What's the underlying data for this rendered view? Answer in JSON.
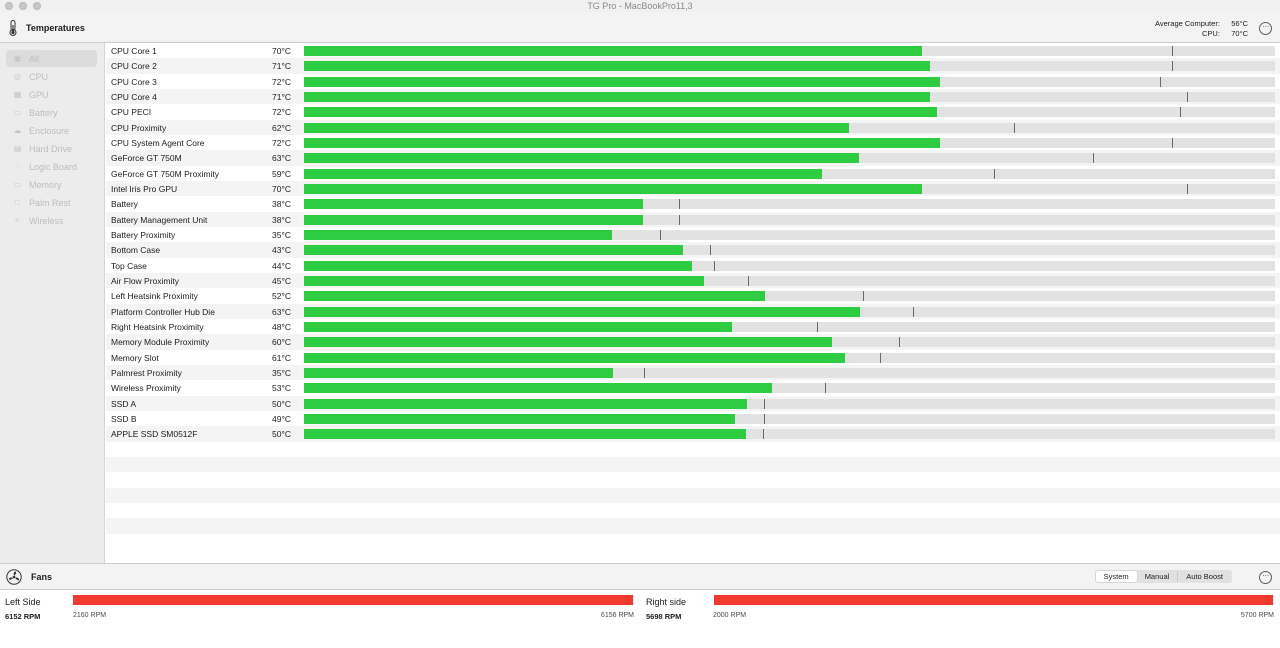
{
  "window": {
    "title": "TG Pro - MacBookPro11,3"
  },
  "temperatures": {
    "title": "Temperatures",
    "average_label": "Average Computer:",
    "average_value": "56°C",
    "cpu_label": "CPU:",
    "cpu_value": "70°C",
    "more": "⋯"
  },
  "sidebar": {
    "items": [
      {
        "label": "All",
        "icon": "all-icon",
        "glyph": "▣"
      },
      {
        "label": "CPU",
        "icon": "cpu-icon",
        "glyph": "◎"
      },
      {
        "label": "GPU",
        "icon": "gpu-icon",
        "glyph": "▦"
      },
      {
        "label": "Battery",
        "icon": "battery-icon",
        "glyph": "▭"
      },
      {
        "label": "Enclosure",
        "icon": "enclosure-icon",
        "glyph": "☁"
      },
      {
        "label": "Hard Drive",
        "icon": "hard-drive-icon",
        "glyph": "▤"
      },
      {
        "label": "Logic Board",
        "icon": "logic-board-icon",
        "glyph": "◌"
      },
      {
        "label": "Memory",
        "icon": "memory-icon",
        "glyph": "▭"
      },
      {
        "label": "Palm Rest",
        "icon": "palm-rest-icon",
        "glyph": "□"
      },
      {
        "label": "Wireless",
        "icon": "wireless-icon",
        "glyph": "≈"
      }
    ]
  },
  "sensors": [
    {
      "name": "CPU Core 1",
      "value": "70°C",
      "level": 0.636,
      "max": 0.894
    },
    {
      "name": "CPU Core 2",
      "value": "71°C",
      "level": 0.645,
      "max": 0.894
    },
    {
      "name": "CPU Core 3",
      "value": "72°C",
      "level": 0.655,
      "max": 0.882
    },
    {
      "name": "CPU Core 4",
      "value": "71°C",
      "level": 0.645,
      "max": 0.909
    },
    {
      "name": "CPU PECI",
      "value": "72°C",
      "level": 0.652,
      "max": 0.902
    },
    {
      "name": "CPU Proximity",
      "value": "62°C",
      "level": 0.561,
      "max": 0.731
    },
    {
      "name": "CPU System Agent Core",
      "value": "72°C",
      "level": 0.655,
      "max": 0.894
    },
    {
      "name": "GeForce GT 750M",
      "value": "63°C",
      "level": 0.572,
      "max": 0.813
    },
    {
      "name": "GeForce GT 750M Proximity",
      "value": "59°C",
      "level": 0.533,
      "max": 0.711
    },
    {
      "name": "Intel Iris Pro GPU",
      "value": "70°C",
      "level": 0.636,
      "max": 0.909
    },
    {
      "name": "Battery",
      "value": "38°C",
      "level": 0.349,
      "max": 0.386
    },
    {
      "name": "Battery Management Unit",
      "value": "38°C",
      "level": 0.349,
      "max": 0.386
    },
    {
      "name": "Battery Proximity",
      "value": "35°C",
      "level": 0.317,
      "max": 0.367
    },
    {
      "name": "Bottom Case",
      "value": "43°C",
      "level": 0.39,
      "max": 0.418
    },
    {
      "name": "Top Case",
      "value": "44°C",
      "level": 0.4,
      "max": 0.422
    },
    {
      "name": "Air Flow Proximity",
      "value": "45°C",
      "level": 0.412,
      "max": 0.457
    },
    {
      "name": "Left Heatsink Proximity",
      "value": "52°C",
      "level": 0.475,
      "max": 0.576
    },
    {
      "name": "Platform Controller Hub Die",
      "value": "63°C",
      "level": 0.573,
      "max": 0.627
    },
    {
      "name": "Right Heatsink Proximity",
      "value": "48°C",
      "level": 0.441,
      "max": 0.528
    },
    {
      "name": "Memory Module Proximity",
      "value": "60°C",
      "level": 0.544,
      "max": 0.613
    },
    {
      "name": "Memory Slot",
      "value": "61°C",
      "level": 0.557,
      "max": 0.593
    },
    {
      "name": "Palmrest Proximity",
      "value": "35°C",
      "level": 0.318,
      "max": 0.35
    },
    {
      "name": "Wireless Proximity",
      "value": "53°C",
      "level": 0.482,
      "max": 0.537
    },
    {
      "name": "SSD A",
      "value": "50°C",
      "level": 0.456,
      "max": 0.474
    },
    {
      "name": "SSD B",
      "value": "49°C",
      "level": 0.444,
      "max": 0.474
    },
    {
      "name": "APPLE SSD SM0512F",
      "value": "50°C",
      "level": 0.455,
      "max": 0.473
    }
  ],
  "fans": {
    "title": "Fans",
    "modes": [
      "System",
      "Manual",
      "Auto Boost"
    ],
    "active_mode": "System",
    "more": "⋯",
    "items": [
      {
        "name": "Left Side",
        "rpm": "6152 RPM",
        "min": "2160 RPM",
        "max": "6156 RPM",
        "level": 0.999
      },
      {
        "name": "Right side",
        "rpm": "5698 RPM",
        "min": "2000 RPM",
        "max": "5700 RPM",
        "level": 0.999
      }
    ]
  },
  "colors": {
    "temp_bar": "#2ecc40",
    "fan_bar": "#f23a30",
    "track": "#e2e2e2",
    "marker": "#6a6a6a"
  }
}
